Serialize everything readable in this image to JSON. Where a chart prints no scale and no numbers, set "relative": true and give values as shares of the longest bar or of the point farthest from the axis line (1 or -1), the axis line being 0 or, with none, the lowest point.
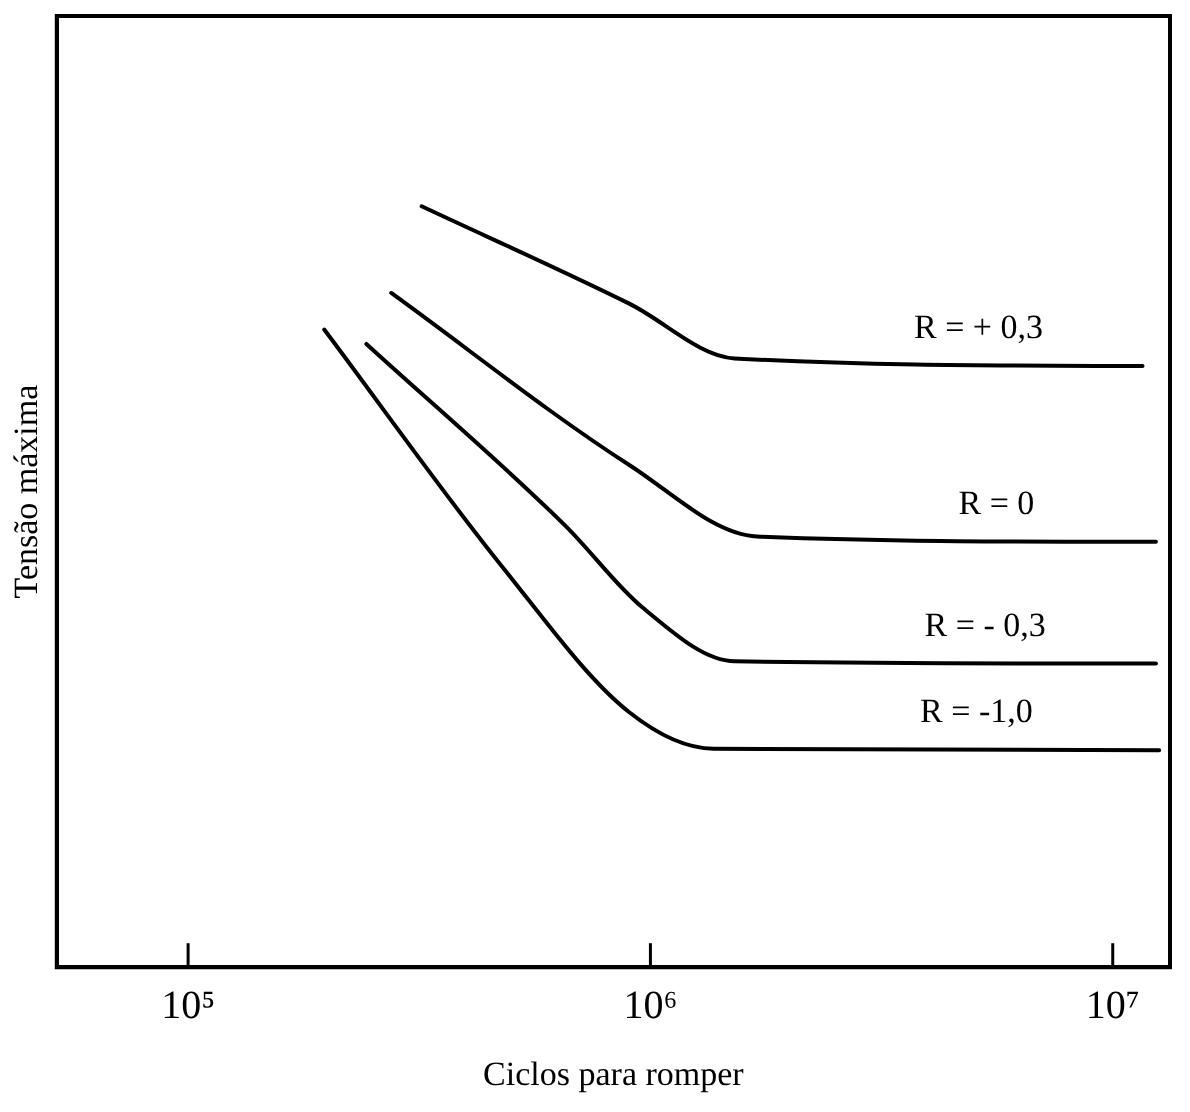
{
  "chart_data": {
    "type": "line",
    "xlabel": "Ciclos para romper",
    "ylabel": "Tensão máxima",
    "relative": true,
    "log": "x",
    "xlim": [
      52000,
      13300000
    ],
    "xticks": [
      {
        "value": 100000,
        "label": "10⁵"
      },
      {
        "value": 1000000,
        "label": "10⁶"
      },
      {
        "value": 10000000,
        "label": "10⁷"
      }
    ],
    "grid": false,
    "legend": false,
    "marker": "none",
    "line_style": "solid",
    "series": [
      {
        "name": "R = + 0,3",
        "color": "#000000",
        "x": [
          320000,
          900000,
          1520000,
          11600000
        ],
        "values": [
          1,
          0.872,
          0.8,
          0.79
        ]
      },
      {
        "name": "R = 0",
        "color": "#000000",
        "x": [
          275000,
          900000,
          1700000,
          12400000
        ],
        "values": [
          0.886,
          0.66,
          0.566,
          0.559
        ]
      },
      {
        "name": "R = - 0,3",
        "color": "#000000",
        "x": [
          243000,
          655000,
          960000,
          1520000,
          12400000
        ],
        "values": [
          0.819,
          0.58,
          0.473,
          0.402,
          0.399
        ]
      },
      {
        "name": "R = -1,0",
        "color": "#000000",
        "x": [
          197000,
          477000,
          900000,
          1370000,
          12600000
        ],
        "values": [
          0.838,
          0.527,
          0.335,
          0.287,
          0.285
        ]
      }
    ]
  }
}
